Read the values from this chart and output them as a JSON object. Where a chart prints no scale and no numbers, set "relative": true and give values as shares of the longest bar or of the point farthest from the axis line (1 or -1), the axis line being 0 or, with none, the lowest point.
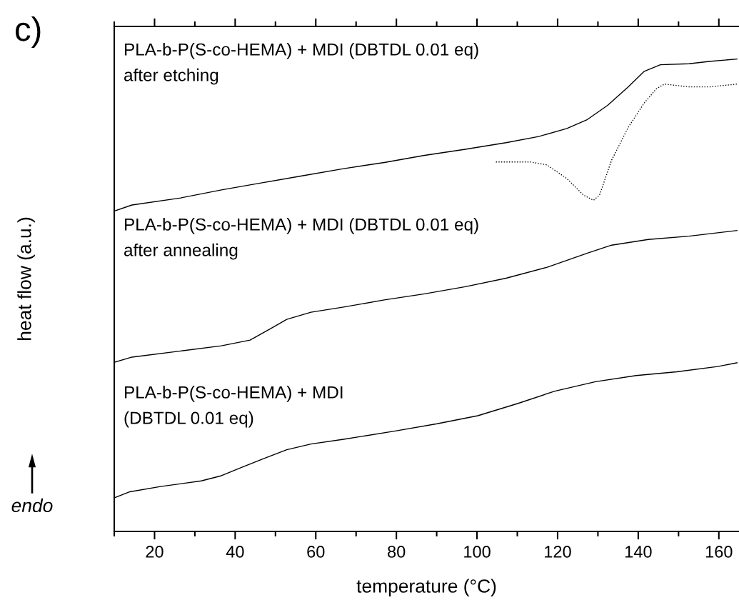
{
  "chart_data": {
    "type": "line",
    "title": "c)",
    "xlabel": "temperature (°C)",
    "ylabel": "heat flow (a.u.)",
    "relative": true,
    "xlim": [
      10,
      165
    ],
    "xticks": [
      {
        "value": 10,
        "label": null
      },
      20,
      {
        "value": 30,
        "label": null
      },
      40,
      {
        "value": 50,
        "label": null
      },
      60,
      {
        "value": 70,
        "label": null
      },
      80,
      {
        "value": 90,
        "label": null
      },
      100,
      {
        "value": 110,
        "label": null
      },
      120,
      {
        "value": 130,
        "label": null
      },
      140,
      {
        "value": 150,
        "label": null
      },
      160
    ],
    "grid": false,
    "legend": false,
    "marker": "none",
    "series": [
      {
        "color": "#000000",
        "line_style": "solid",
        "x": [
          10,
          14.4,
          26.5,
          36.6,
          46.7,
          56.8,
          66.9,
          77,
          87,
          97.1,
          107.2,
          115.3,
          122.3,
          127.4,
          132.4,
          137.5,
          141.5,
          145.5,
          152.6,
          157.6,
          164.5
        ],
        "values": [
          0.678,
          0.691,
          0.706,
          0.723,
          0.738,
          0.753,
          0.768,
          0.781,
          0.796,
          0.809,
          0.823,
          0.836,
          0.853,
          0.872,
          0.902,
          0.941,
          0.974,
          0.988,
          0.99,
          0.995,
          1.0
        ]
      },
      {
        "color": "#000000",
        "line_style": "dotted",
        "x": [
          104.7,
          113.3,
          117.3,
          122.3,
          126.4,
          128.9,
          130.4,
          133.4,
          137.5,
          141.5,
          144.5,
          146.5,
          152.6,
          157.6,
          164.5
        ],
        "values": [
          0.782,
          0.782,
          0.776,
          0.747,
          0.712,
          0.701,
          0.712,
          0.786,
          0.855,
          0.907,
          0.937,
          0.947,
          0.941,
          0.941,
          0.947
        ]
      },
      {
        "color": "#000000",
        "line_style": "solid",
        "x": [
          10,
          14.4,
          26.5,
          36.6,
          43.7,
          48.7,
          52.8,
          58.8,
          66.9,
          77,
          87,
          97.1,
          107.2,
          117.3,
          127.4,
          133.4,
          142.5,
          152.6,
          164.5
        ],
        "values": [
          0.358,
          0.369,
          0.382,
          0.393,
          0.405,
          0.429,
          0.449,
          0.464,
          0.475,
          0.49,
          0.503,
          0.518,
          0.536,
          0.559,
          0.589,
          0.606,
          0.618,
          0.625,
          0.637
        ]
      },
      {
        "color": "#000000",
        "line_style": "solid",
        "x": [
          10,
          13.9,
          21.5,
          31.6,
          36.6,
          41.7,
          46.7,
          52.8,
          58.8,
          66.9,
          80,
          90.1,
          100.2,
          110.2,
          119.3,
          129.4,
          139.5,
          149.6,
          159.7,
          164.5
        ],
        "values": [
          0.071,
          0.084,
          0.095,
          0.107,
          0.118,
          0.136,
          0.153,
          0.173,
          0.185,
          0.195,
          0.213,
          0.228,
          0.245,
          0.271,
          0.297,
          0.317,
          0.33,
          0.338,
          0.349,
          0.357
        ]
      }
    ],
    "annotations": [
      "PLA-b-P(S-co-HEMA) + MDI (DBTDL 0.01 eq)\nafter etching",
      "PLA-b-P(S-co-HEMA) + MDI (DBTDL 0.01 eq)\nafter annealing",
      "PLA-b-P(S-co-HEMA) + MDI\n(DBTDL 0.01 eq)",
      "endo"
    ]
  }
}
